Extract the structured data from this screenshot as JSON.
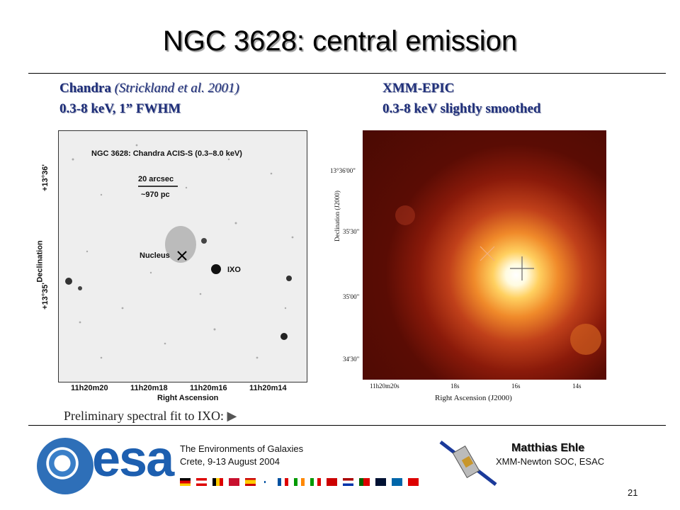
{
  "slide": {
    "title": "NGC 3628: central emission",
    "page_number": "21"
  },
  "left_panel": {
    "caption_instrument": "Chandra",
    "caption_ref": "(Strickland et al. 2001)",
    "caption_line2": "0.3-8 keV, 1” FWHM",
    "image_title": "NGC 3628: Chandra ACIS-S (0.3–8.0 keV)",
    "scale_top": "20 arcsec",
    "scale_bottom": "~970 pc",
    "label_nucleus": "Nucleus",
    "label_ixo": "IXO",
    "ylabel": "Declination",
    "xlabel": "Right Ascension",
    "yticks": [
      "+13°36'",
      "+13°35'"
    ],
    "xticks": [
      "11h20m20",
      "11h20m18",
      "11h20m16",
      "11h20m14"
    ]
  },
  "right_panel": {
    "caption_instrument": "XMM-EPIC",
    "caption_line2": "0.3-8 keV slightly smoothed",
    "ylabel": "Declination (J2000)",
    "xlabel": "Right Ascension (J2000)",
    "yticks": [
      "13°36'00\"",
      "35'30\"",
      "35'00\"",
      "34'30\""
    ],
    "xticks": [
      "11h20m20s",
      "18s",
      "16s",
      "14s"
    ]
  },
  "note": "Preliminary spectral fit to IXO:",
  "footer": {
    "logo_text": "esa",
    "event_line1": "The Environments of Galaxies",
    "event_line2": "Crete, 9-13 August 2004",
    "author": "Matthias Ehle",
    "affiliation": "XMM-Newton SOC, ESAC"
  }
}
